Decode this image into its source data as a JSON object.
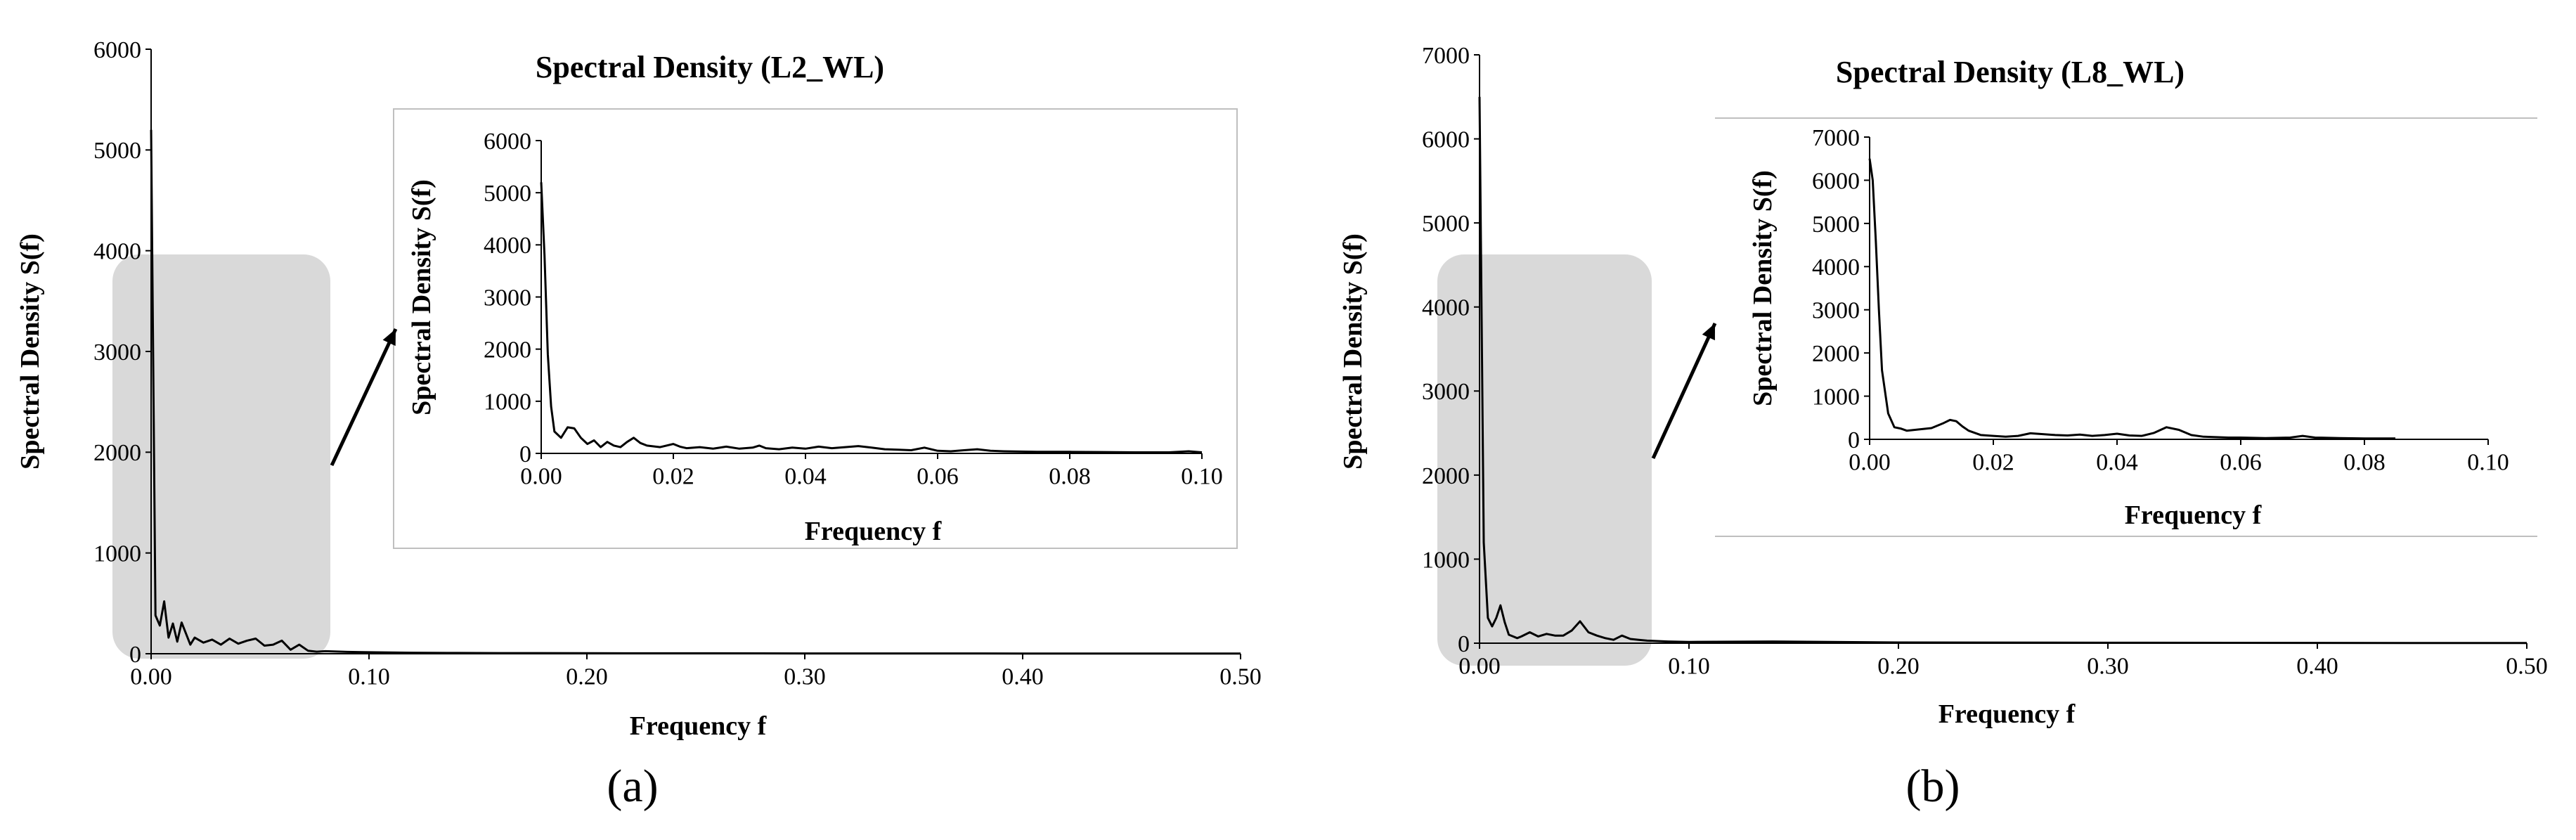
{
  "chart_data": [
    {
      "type": "line",
      "panel_label": "(a)",
      "main": {
        "xlabel": "Frequency f",
        "ylabel": "Spectral Density S(f)",
        "xlim": [
          0,
          0.5
        ],
        "ylim": [
          0,
          6000
        ],
        "x_ticks": [
          "0.00",
          "0.10",
          "0.20",
          "0.30",
          "0.40",
          "0.50"
        ],
        "y_ticks": [
          "0",
          "1000",
          "2000",
          "3000",
          "4000",
          "5000",
          "6000"
        ],
        "highlight_range": [
          0.0,
          0.08
        ],
        "x": [
          0,
          0.002,
          0.004,
          0.006,
          0.008,
          0.01,
          0.012,
          0.014,
          0.016,
          0.018,
          0.02,
          0.024,
          0.028,
          0.032,
          0.036,
          0.04,
          0.044,
          0.048,
          0.052,
          0.056,
          0.06,
          0.064,
          0.068,
          0.072,
          0.076,
          0.08,
          0.09,
          0.1,
          0.12,
          0.14,
          0.16,
          0.2,
          0.25,
          0.3,
          0.35,
          0.4,
          0.45,
          0.5
        ],
        "y": [
          5200,
          380,
          280,
          520,
          160,
          300,
          120,
          310,
          200,
          90,
          160,
          110,
          140,
          90,
          150,
          100,
          130,
          150,
          80,
          90,
          130,
          40,
          90,
          30,
          20,
          25,
          18,
          15,
          10,
          8,
          6,
          5,
          4,
          3,
          3,
          2,
          2,
          2
        ]
      },
      "inset": {
        "title": "Spectral Density (L2_WL)",
        "xlabel": "Frequency f",
        "ylabel": "Spectral Density S(f)",
        "xlim": [
          0,
          0.1
        ],
        "ylim": [
          0,
          6000
        ],
        "x_ticks": [
          "0.00",
          "0.02",
          "0.04",
          "0.06",
          "0.08",
          "0.10"
        ],
        "y_ticks": [
          "0",
          "1000",
          "2000",
          "3000",
          "4000",
          "5000",
          "6000"
        ],
        "x": [
          0,
          0.0005,
          0.001,
          0.0015,
          0.002,
          0.003,
          0.004,
          0.005,
          0.006,
          0.007,
          0.008,
          0.009,
          0.01,
          0.011,
          0.012,
          0.013,
          0.014,
          0.015,
          0.016,
          0.018,
          0.02,
          0.021,
          0.022,
          0.024,
          0.026,
          0.028,
          0.03,
          0.032,
          0.033,
          0.034,
          0.036,
          0.038,
          0.04,
          0.042,
          0.044,
          0.046,
          0.048,
          0.05,
          0.052,
          0.054,
          0.056,
          0.058,
          0.06,
          0.062,
          0.064,
          0.066,
          0.068,
          0.07,
          0.075,
          0.08,
          0.085,
          0.09,
          0.095,
          0.098,
          0.1
        ],
        "y": [
          5200,
          3800,
          1900,
          900,
          420,
          300,
          500,
          480,
          300,
          180,
          250,
          120,
          220,
          150,
          120,
          220,
          300,
          200,
          150,
          120,
          180,
          130,
          100,
          120,
          90,
          130,
          90,
          110,
          150,
          100,
          80,
          110,
          90,
          130,
          100,
          120,
          140,
          110,
          80,
          70,
          60,
          110,
          50,
          40,
          60,
          80,
          50,
          40,
          30,
          30,
          25,
          20,
          20,
          40,
          20
        ]
      }
    },
    {
      "type": "line",
      "panel_label": "(b)",
      "main": {
        "xlabel": "Frequency f",
        "ylabel": "Spectral Density S(f)",
        "xlim": [
          0,
          0.5
        ],
        "ylim": [
          0,
          7000
        ],
        "x_ticks": [
          "0.00",
          "0.10",
          "0.20",
          "0.30",
          "0.40",
          "0.50"
        ],
        "y_ticks": [
          "0",
          "1000",
          "2000",
          "3000",
          "4000",
          "5000",
          "6000",
          "7000"
        ],
        "highlight_range": [
          0.0,
          0.08
        ],
        "x": [
          0,
          0.002,
          0.004,
          0.006,
          0.008,
          0.01,
          0.012,
          0.014,
          0.016,
          0.018,
          0.02,
          0.024,
          0.028,
          0.032,
          0.036,
          0.04,
          0.044,
          0.048,
          0.052,
          0.056,
          0.06,
          0.064,
          0.068,
          0.072,
          0.076,
          0.08,
          0.09,
          0.1,
          0.14,
          0.2,
          0.3,
          0.4,
          0.5
        ],
        "y": [
          6500,
          1200,
          300,
          200,
          300,
          450,
          250,
          100,
          80,
          60,
          80,
          130,
          80,
          110,
          90,
          90,
          150,
          260,
          130,
          90,
          60,
          40,
          90,
          50,
          40,
          30,
          20,
          15,
          20,
          8,
          5,
          3,
          2
        ]
      },
      "inset": {
        "title": "Spectral Density (L8_WL)",
        "xlabel": "Frequency f",
        "ylabel": "Spectral Density S(f)",
        "xlim": [
          0,
          0.1
        ],
        "ylim": [
          0,
          7000
        ],
        "x_ticks": [
          "0.00",
          "0.02",
          "0.04",
          "0.06",
          "0.08",
          "0.10"
        ],
        "y_ticks": [
          "0",
          "1000",
          "2000",
          "3000",
          "4000",
          "5000",
          "6000",
          "7000"
        ],
        "x": [
          0,
          0.0005,
          0.001,
          0.0015,
          0.002,
          0.003,
          0.004,
          0.005,
          0.006,
          0.008,
          0.01,
          0.012,
          0.013,
          0.014,
          0.015,
          0.016,
          0.018,
          0.02,
          0.022,
          0.024,
          0.026,
          0.028,
          0.03,
          0.032,
          0.034,
          0.036,
          0.038,
          0.04,
          0.042,
          0.044,
          0.046,
          0.048,
          0.05,
          0.052,
          0.054,
          0.056,
          0.058,
          0.06,
          0.064,
          0.068,
          0.07,
          0.072,
          0.076,
          0.08,
          0.085
        ],
        "y": [
          6500,
          6000,
          4600,
          3000,
          1600,
          600,
          280,
          250,
          200,
          230,
          260,
          380,
          450,
          420,
          300,
          200,
          100,
          80,
          60,
          80,
          140,
          120,
          100,
          90,
          110,
          80,
          100,
          130,
          90,
          80,
          150,
          280,
          220,
          100,
          60,
          50,
          40,
          40,
          30,
          40,
          80,
          40,
          30,
          20,
          20
        ]
      }
    }
  ]
}
